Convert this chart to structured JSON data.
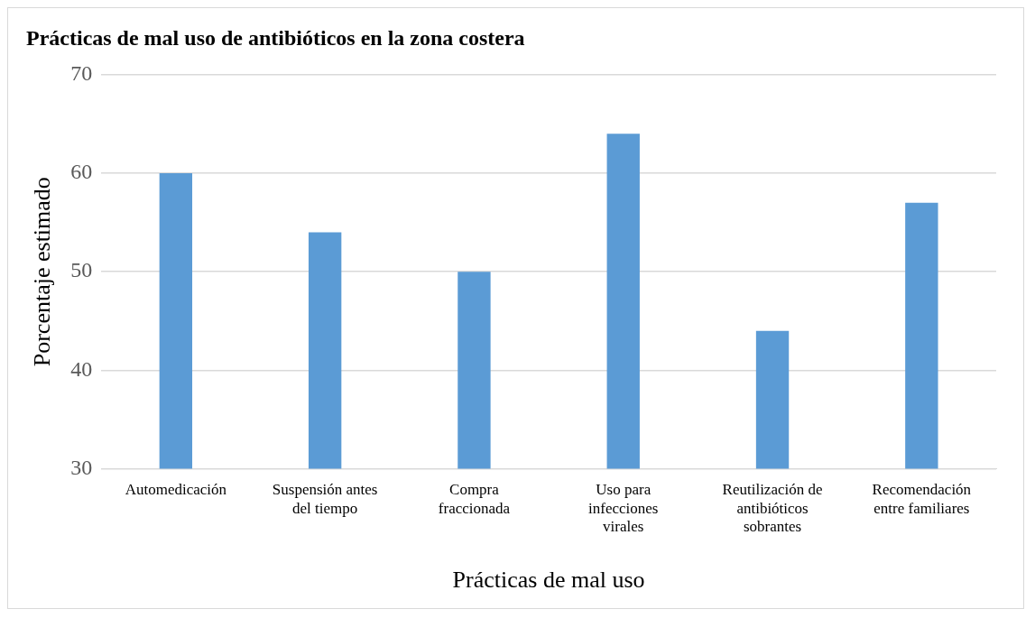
{
  "chart_data": {
    "type": "bar",
    "title": "Prácticas de mal uso de antibióticos en la zona costera",
    "xlabel": "Prácticas de mal uso",
    "ylabel": "Porcentaje estimado",
    "categories": [
      "Automedicación",
      "Suspensión antes del tiempo",
      "Compra fraccionada",
      "Uso para infecciones virales",
      "Reutilización de antibióticos sobrantes",
      "Recomendación entre familiares"
    ],
    "values": [
      60,
      54,
      50,
      64,
      44,
      57
    ],
    "color": "#5b9bd5",
    "ylim": [
      30,
      70
    ],
    "yticks": [
      30,
      40,
      50,
      60,
      70
    ],
    "grid": "y"
  }
}
